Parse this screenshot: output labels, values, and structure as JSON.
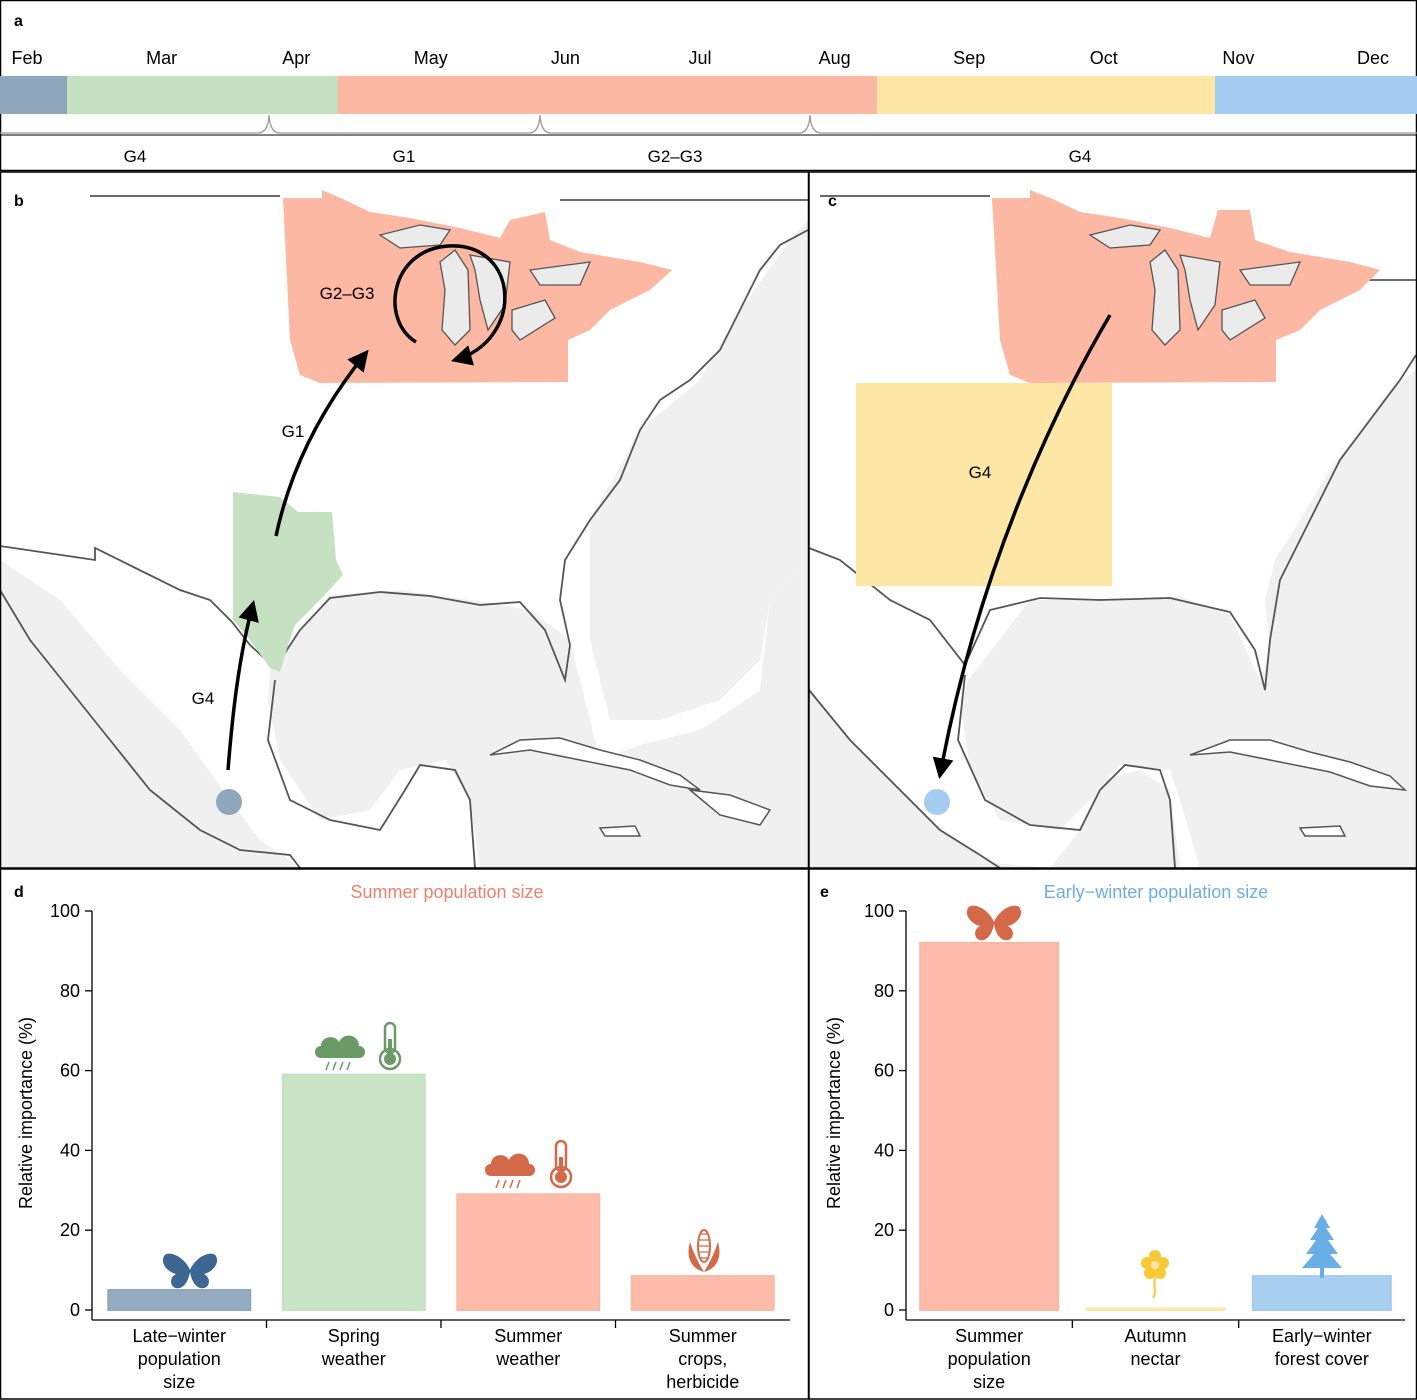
{
  "panel_a": {
    "label": "a",
    "months": [
      "Feb",
      "Mar",
      "Apr",
      "May",
      "Jun",
      "Jul",
      "Aug",
      "Sep",
      "Oct",
      "Nov",
      "Dec"
    ],
    "period_colors": [
      "#8fa7bd",
      "#c5e1c2",
      "#fdb8a4",
      "#fde6a6",
      "#a4ccf0"
    ],
    "generations": [
      "G4",
      "G1",
      "G2–G3",
      "G4"
    ]
  },
  "panel_b": {
    "label": "b",
    "region_labels": {
      "north": "G2–G3",
      "arrow_up": "G1",
      "south": "G4"
    },
    "colors": {
      "north": "#fdb8a4",
      "texas": "#c5e1c2",
      "site": "#8fa7bd"
    }
  },
  "panel_c": {
    "label": "c",
    "region_labels": {
      "box": "G4"
    },
    "colors": {
      "north": "#fdb8a4",
      "box": "#fde6a6",
      "site": "#a4ccf0"
    }
  },
  "chart_data": [
    {
      "panel": "d",
      "type": "bar",
      "title": "Summer population size",
      "title_color": "#e8826a",
      "ylabel": "Relative importance (%)",
      "ylim": [
        0,
        100
      ],
      "yticks": [
        "0",
        "20",
        "40",
        "60",
        "80",
        "100"
      ],
      "categories": [
        [
          "Late−winter",
          "population",
          "size"
        ],
        [
          "Spring",
          "weather"
        ],
        [
          "Summer",
          "weather"
        ],
        [
          "Summer",
          "crops,",
          "herbicide"
        ]
      ],
      "values": [
        5,
        59,
        29,
        8.5
      ],
      "colors": [
        "#8fa7bd",
        "#c5e1c2",
        "#fdb8a4",
        "#fdb8a4"
      ],
      "icons": [
        "butterfly-icon",
        "rain-cloud-and-thermometer-icon",
        "rain-cloud-and-thermometer-icon",
        "corn-icon"
      ]
    },
    {
      "panel": "e",
      "type": "bar",
      "title": "Early−winter population size",
      "title_color": "#6aaee6",
      "ylabel": "Relative importance (%)",
      "ylim": [
        0,
        100
      ],
      "yticks": [
        "0",
        "20",
        "40",
        "60",
        "80",
        "100"
      ],
      "categories": [
        [
          "Summer",
          "population",
          "size"
        ],
        [
          "Autumn",
          "nectar"
        ],
        [
          "Early−winter",
          "forest cover"
        ]
      ],
      "values": [
        92,
        0.4,
        8.5
      ],
      "colors": [
        "#fdb8a4",
        "#fde6a6",
        "#a4ccf0"
      ],
      "icons": [
        "butterfly-icon",
        "flower-icon",
        "tree-icon"
      ]
    }
  ]
}
